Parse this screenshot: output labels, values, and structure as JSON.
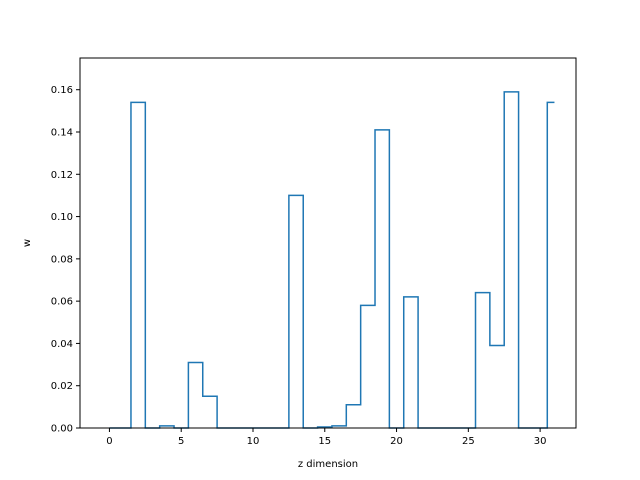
{
  "chart_data": {
    "type": "step",
    "title": "",
    "xlabel": "z dimension",
    "ylabel": "w",
    "xlim": [
      -2.05,
      32.5
    ],
    "ylim": [
      0,
      0.175
    ],
    "xticks": [
      0,
      5,
      10,
      15,
      20,
      25,
      30
    ],
    "yticks": [
      0.0,
      0.02,
      0.04,
      0.06,
      0.08,
      0.1,
      0.12,
      0.14,
      0.16
    ],
    "ytick_labels": [
      "0.00",
      "0.02",
      "0.04",
      "0.06",
      "0.08",
      "0.10",
      "0.12",
      "0.14",
      "0.16"
    ],
    "grid": false,
    "series_color": "#1f77b4",
    "x": [
      0,
      1,
      2,
      3,
      4,
      5,
      6,
      7,
      8,
      9,
      10,
      11,
      12,
      13,
      14,
      15,
      16,
      17,
      18,
      19,
      20,
      21,
      22,
      23,
      24,
      25,
      26,
      27,
      28,
      29,
      30,
      31
    ],
    "values": [
      0,
      0,
      0.154,
      0,
      0.001,
      0,
      0.031,
      0.015,
      0,
      0,
      0,
      0,
      0,
      0.11,
      0,
      0.0005,
      0.001,
      0.011,
      0.058,
      0.141,
      0,
      0.062,
      0,
      0,
      0,
      0,
      0.064,
      0.039,
      0.159,
      0,
      0,
      0.154
    ]
  }
}
